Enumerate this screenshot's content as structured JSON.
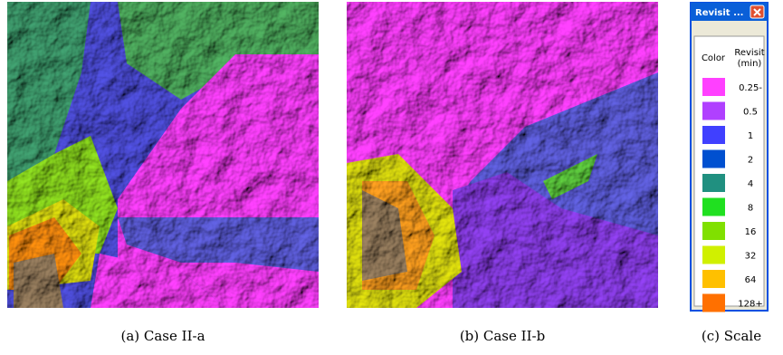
{
  "figures": [
    {
      "caption": "(a) Case II-a"
    },
    {
      "caption": "(b) Case II-b"
    },
    {
      "caption": "(c) Scale"
    }
  ],
  "legend": {
    "title": "Revisit ...",
    "header_color": "Color",
    "header_revisit": [
      "Revisit",
      "(min)"
    ],
    "rows": [
      {
        "label": "0.25-",
        "color": "#ff40ff"
      },
      {
        "label": "0.5",
        "color": "#b040ff"
      },
      {
        "label": "1",
        "color": "#4040ff"
      },
      {
        "label": "2",
        "color": "#0050d0"
      },
      {
        "label": "4",
        "color": "#209080"
      },
      {
        "label": "8",
        "color": "#20e020"
      },
      {
        "label": "16",
        "color": "#80e000"
      },
      {
        "label": "32",
        "color": "#d0f000"
      },
      {
        "label": "64",
        "color": "#ffc000"
      },
      {
        "label": "128+",
        "color": "#ff7000"
      }
    ]
  }
}
